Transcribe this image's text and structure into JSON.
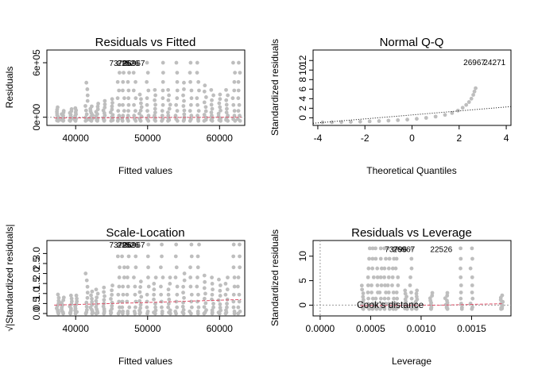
{
  "figure": {
    "point_color": "#bebebe",
    "smooth_color": "#df536b",
    "refline_color": "#000000"
  },
  "chart_data": [
    {
      "id": "rvf",
      "type": "scatter",
      "title": "Residuals vs Fitted",
      "xlabel": "Fitted values",
      "ylabel": "Residuals",
      "xlim": [
        36000,
        63500
      ],
      "ylim": [
        -90000,
        740000
      ],
      "xticks": [
        40000,
        50000,
        60000
      ],
      "xtick_labels": [
        "40000",
        "50000",
        "60000"
      ],
      "yticks": [
        0,
        600000
      ],
      "ytick_labels": [
        "0e+00",
        "6e+05"
      ],
      "hline": 0,
      "smooth": [
        [
          37000,
          -8000
        ],
        [
          50000,
          -4000
        ],
        [
          63000,
          0
        ]
      ],
      "point_labels": [
        {
          "text": "73796",
          "x": 46200,
          "y": 600000
        },
        {
          "text": "22526",
          "x": 47300,
          "y": 600000
        },
        {
          "text": "26967",
          "x": 48100,
          "y": 600000
        }
      ],
      "point_groups": [
        {
          "x": 37500,
          "lo": -40000,
          "hi": 110000
        },
        {
          "x": 38200,
          "lo": -40000,
          "hi": 70000
        },
        {
          "x": 39300,
          "lo": -40000,
          "hi": 90000
        },
        {
          "x": 40000,
          "lo": -40000,
          "hi": 100000
        },
        {
          "x": 41500,
          "lo": -40000,
          "hi": 380000
        },
        {
          "x": 42200,
          "lo": -40000,
          "hi": 120000
        },
        {
          "x": 43000,
          "lo": -40000,
          "hi": 150000
        },
        {
          "x": 44000,
          "lo": -40000,
          "hi": 180000
        },
        {
          "x": 45000,
          "lo": -40000,
          "hi": 200000
        },
        {
          "x": 46000,
          "lo": -40000,
          "hi": 600000
        },
        {
          "x": 46600,
          "lo": -40000,
          "hi": 600000
        },
        {
          "x": 47300,
          "lo": -40000,
          "hi": 600000
        },
        {
          "x": 48200,
          "lo": -40000,
          "hi": 600000
        },
        {
          "x": 49000,
          "lo": -40000,
          "hi": 250000
        },
        {
          "x": 50000,
          "lo": -40000,
          "hi": 600000
        },
        {
          "x": 51000,
          "lo": -40000,
          "hi": 300000
        },
        {
          "x": 52000,
          "lo": -40000,
          "hi": 600000
        },
        {
          "x": 53000,
          "lo": -40000,
          "hi": 300000
        },
        {
          "x": 54000,
          "lo": -40000,
          "hi": 600000
        },
        {
          "x": 55000,
          "lo": -40000,
          "hi": 380000
        },
        {
          "x": 56000,
          "lo": -40000,
          "hi": 600000
        },
        {
          "x": 57000,
          "lo": -40000,
          "hi": 600000
        },
        {
          "x": 58000,
          "lo": -40000,
          "hi": 350000
        },
        {
          "x": 59000,
          "lo": -40000,
          "hi": 300000
        },
        {
          "x": 60000,
          "lo": -40000,
          "hi": 250000
        },
        {
          "x": 61000,
          "lo": -40000,
          "hi": 300000
        },
        {
          "x": 62000,
          "lo": -40000,
          "hi": 600000
        },
        {
          "x": 62700,
          "lo": -40000,
          "hi": 600000
        }
      ]
    },
    {
      "id": "qq",
      "type": "scatter",
      "title": "Normal Q-Q",
      "xlabel": "Theoretical Quantiles",
      "ylabel": "Standardized residuals",
      "xlim": [
        -4.2,
        4.2
      ],
      "ylim": [
        -1.6,
        14.2
      ],
      "xticks": [
        -4,
        -2,
        0,
        2,
        4
      ],
      "xtick_labels": [
        "-4",
        "-2",
        "0",
        "2",
        "4"
      ],
      "yticks": [
        0,
        2,
        4,
        6,
        8,
        10,
        12
      ],
      "ytick_labels": [
        "0",
        "2",
        "4",
        "6",
        "8",
        "10",
        "12"
      ],
      "refline": [
        [
          -4.2,
          -1.15
        ],
        [
          4.2,
          2.35
        ]
      ],
      "point_labels": [
        {
          "text": "26967",
          "x": 2.65,
          "y": 11.7
        },
        {
          "text": "24271",
          "x": 3.5,
          "y": 11.7
        }
      ],
      "points": [
        [
          -3.8,
          -0.95
        ],
        [
          -3.4,
          -0.93
        ],
        [
          -3.0,
          -0.9
        ],
        [
          -2.6,
          -0.87
        ],
        [
          -2.2,
          -0.82
        ],
        [
          -1.8,
          -0.76
        ],
        [
          -1.4,
          -0.69
        ],
        [
          -1.0,
          -0.6
        ],
        [
          -0.6,
          -0.5
        ],
        [
          -0.2,
          -0.38
        ],
        [
          0.2,
          -0.22
        ],
        [
          0.6,
          -0.02
        ],
        [
          1.0,
          0.25
        ],
        [
          1.4,
          0.6
        ],
        [
          1.7,
          1.0
        ],
        [
          1.95,
          1.5
        ],
        [
          2.15,
          2.1
        ],
        [
          2.3,
          2.7
        ],
        [
          2.42,
          3.3
        ],
        [
          2.52,
          4.0
        ],
        [
          2.6,
          4.8
        ],
        [
          2.65,
          5.5
        ],
        [
          2.7,
          6.2
        ]
      ]
    },
    {
      "id": "sl",
      "type": "scatter",
      "title": "Scale-Location",
      "xlabel": "Fitted values",
      "ylabel": "√|Standardized residuals|",
      "xlim": [
        36000,
        63500
      ],
      "ylim": [
        -0.12,
        3.65
      ],
      "xticks": [
        40000,
        50000,
        60000
      ],
      "xtick_labels": [
        "40000",
        "50000",
        "60000"
      ],
      "yticks": [
        0.0,
        0.5,
        1.0,
        1.5,
        2.0,
        2.5,
        3.0
      ],
      "ytick_labels": [
        "0.0",
        "0.5",
        "1.0",
        "1.5",
        "2.0",
        "2.5",
        "3.0"
      ],
      "smooth": [
        [
          37000,
          0.42
        ],
        [
          50000,
          0.55
        ],
        [
          63000,
          0.7
        ]
      ],
      "point_labels": [
        {
          "text": "73796",
          "x": 46200,
          "y": 3.45
        },
        {
          "text": "22526",
          "x": 47300,
          "y": 3.45
        },
        {
          "text": "26967",
          "x": 48100,
          "y": 3.45
        }
      ],
      "point_groups": [
        {
          "x": 37500,
          "lo": 0.0,
          "hi": 0.95
        },
        {
          "x": 38200,
          "lo": 0.0,
          "hi": 0.8
        },
        {
          "x": 39300,
          "lo": 0.0,
          "hi": 0.9
        },
        {
          "x": 40000,
          "lo": 0.0,
          "hi": 0.9
        },
        {
          "x": 41500,
          "lo": 0.0,
          "hi": 2.0
        },
        {
          "x": 42200,
          "lo": 0.0,
          "hi": 1.1
        },
        {
          "x": 43000,
          "lo": 0.0,
          "hi": 1.2
        },
        {
          "x": 44000,
          "lo": 0.0,
          "hi": 1.3
        },
        {
          "x": 45000,
          "lo": 0.0,
          "hi": 1.4
        },
        {
          "x": 46000,
          "lo": 0.0,
          "hi": 3.45
        },
        {
          "x": 46600,
          "lo": 0.0,
          "hi": 3.45
        },
        {
          "x": 47300,
          "lo": 0.0,
          "hi": 3.45
        },
        {
          "x": 48200,
          "lo": 0.0,
          "hi": 3.45
        },
        {
          "x": 49000,
          "lo": 0.0,
          "hi": 1.6
        },
        {
          "x": 50000,
          "lo": 0.0,
          "hi": 3.45
        },
        {
          "x": 51000,
          "lo": 0.0,
          "hi": 1.8
        },
        {
          "x": 52000,
          "lo": 0.0,
          "hi": 3.45
        },
        {
          "x": 53000,
          "lo": 0.0,
          "hi": 1.8
        },
        {
          "x": 54000,
          "lo": 0.0,
          "hi": 3.45
        },
        {
          "x": 55000,
          "lo": 0.0,
          "hi": 2.0
        },
        {
          "x": 56000,
          "lo": 0.0,
          "hi": 3.45
        },
        {
          "x": 57000,
          "lo": 0.0,
          "hi": 3.45
        },
        {
          "x": 58000,
          "lo": 0.0,
          "hi": 1.9
        },
        {
          "x": 59000,
          "lo": 0.0,
          "hi": 1.8
        },
        {
          "x": 60000,
          "lo": 0.0,
          "hi": 1.7
        },
        {
          "x": 61000,
          "lo": 0.0,
          "hi": 1.8
        },
        {
          "x": 62000,
          "lo": 0.0,
          "hi": 3.45
        },
        {
          "x": 62700,
          "lo": 0.0,
          "hi": 3.45
        }
      ]
    },
    {
      "id": "rvl",
      "type": "scatter",
      "title": "Residuals vs Leverage",
      "xlabel": "Leverage",
      "ylabel": "Standardized residuals",
      "xlim": [
        -7e-05,
        0.00189
      ],
      "ylim": [
        -2.2,
        13.2
      ],
      "xticks": [
        0.0,
        0.0005,
        0.001,
        0.0015
      ],
      "xtick_labels": [
        "0.0000",
        "0.0005",
        "0.0010",
        "0.0015"
      ],
      "yticks": [
        0,
        5,
        10
      ],
      "ytick_labels": [
        "0",
        "5",
        "10"
      ],
      "hline": 0,
      "vline": 0,
      "cooks_label": "Cook's distance",
      "smooth": [
        [
          0.0004,
          -0.1
        ],
        [
          0.0012,
          0.0
        ],
        [
          0.0018,
          0.3
        ]
      ],
      "point_labels": [
        {
          "text": "73796",
          "x": 0.00075,
          "y": 11.5
        },
        {
          "text": "26967",
          "x": 0.00083,
          "y": 11.5
        },
        {
          "text": "22526",
          "x": 0.0012,
          "y": 11.5
        }
      ],
      "point_groups": [
        {
          "x": 0.00042,
          "lo": -0.8,
          "hi": 4.0
        },
        {
          "x": 0.00048,
          "lo": -0.8,
          "hi": 11.6
        },
        {
          "x": 0.00052,
          "lo": -0.8,
          "hi": 11.6
        },
        {
          "x": 0.00056,
          "lo": -0.8,
          "hi": 11.6
        },
        {
          "x": 0.0006,
          "lo": -0.8,
          "hi": 11.6
        },
        {
          "x": 0.00064,
          "lo": -0.8,
          "hi": 11.6
        },
        {
          "x": 0.00068,
          "lo": -0.8,
          "hi": 11.6
        },
        {
          "x": 0.00072,
          "lo": -0.8,
          "hi": 11.6
        },
        {
          "x": 0.00076,
          "lo": -0.8,
          "hi": 11.6
        },
        {
          "x": 0.00085,
          "lo": -0.8,
          "hi": 3.0
        },
        {
          "x": 0.0009,
          "lo": -0.8,
          "hi": 11.6
        },
        {
          "x": 0.00095,
          "lo": -0.8,
          "hi": 3.0
        },
        {
          "x": 0.0011,
          "lo": -0.8,
          "hi": 2.5
        },
        {
          "x": 0.00125,
          "lo": -0.8,
          "hi": 2.5
        },
        {
          "x": 0.0014,
          "lo": -0.8,
          "hi": 11.6
        },
        {
          "x": 0.0015,
          "lo": -0.8,
          "hi": 11.6
        },
        {
          "x": 0.0018,
          "lo": -0.8,
          "hi": 2.0
        }
      ]
    }
  ]
}
